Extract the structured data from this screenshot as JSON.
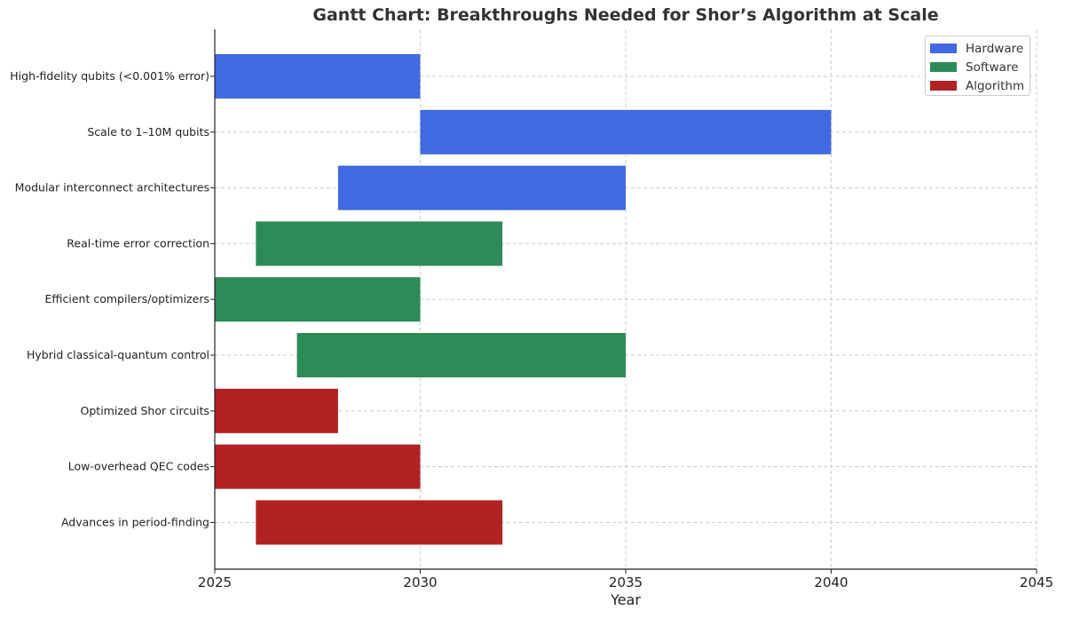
{
  "chart_data": {
    "type": "gantt",
    "title": "Gantt Chart: Breakthroughs Needed for Shor’s Algorithm at Scale",
    "xlabel": "Year",
    "ylabel": "",
    "xlim": [
      2025,
      2045
    ],
    "x_ticks": [
      "2025",
      "2030",
      "2035",
      "2040",
      "2045"
    ],
    "grid": true,
    "legend_position": "top-right",
    "categories": [
      {
        "name": "Hardware",
        "color": "#4169e1"
      },
      {
        "name": "Software",
        "color": "#2e8b57"
      },
      {
        "name": "Algorithm",
        "color": "#b22222"
      }
    ],
    "tasks": [
      {
        "label": "High-fidelity qubits (<0.001% error)",
        "start": 2025,
        "end": 2030,
        "category": "Hardware"
      },
      {
        "label": "Scale to 1–10M qubits",
        "start": 2030,
        "end": 2040,
        "category": "Hardware"
      },
      {
        "label": "Modular interconnect architectures",
        "start": 2028,
        "end": 2035,
        "category": "Hardware"
      },
      {
        "label": "Real-time error correction",
        "start": 2026,
        "end": 2032,
        "category": "Software"
      },
      {
        "label": "Efficient compilers/optimizers",
        "start": 2025,
        "end": 2030,
        "category": "Software"
      },
      {
        "label": "Hybrid classical-quantum control",
        "start": 2027,
        "end": 2035,
        "category": "Software"
      },
      {
        "label": "Optimized Shor circuits",
        "start": 2025,
        "end": 2028,
        "category": "Algorithm"
      },
      {
        "label": "Low-overhead QEC codes",
        "start": 2025,
        "end": 2030,
        "category": "Algorithm"
      },
      {
        "label": "Advances in period-finding",
        "start": 2026,
        "end": 2032,
        "category": "Algorithm"
      }
    ]
  }
}
